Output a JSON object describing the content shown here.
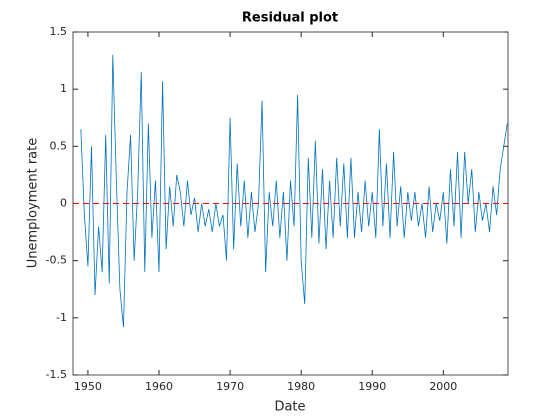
{
  "chart_data": {
    "type": "line",
    "title": "Residual plot",
    "x_label": "Date",
    "y_label": "Unemployment rate",
    "x": [
      1949,
      1949.5,
      1950,
      1950.5,
      1951,
      1951.5,
      1952,
      1952.5,
      1953,
      1953.5,
      1954,
      1954.5,
      1955,
      1955.5,
      1956,
      1956.5,
      1957,
      1957.5,
      1958,
      1958.5,
      1959,
      1959.5,
      1960,
      1960.5,
      1961,
      1961.5,
      1962,
      1962.5,
      1963,
      1963.5,
      1964,
      1964.5,
      1965,
      1965.5,
      1966,
      1966.5,
      1967,
      1967.5,
      1968,
      1968.5,
      1969,
      1969.5,
      1970,
      1970.5,
      1971,
      1971.5,
      1972,
      1972.5,
      1973,
      1973.5,
      1974,
      1974.5,
      1975,
      1975.5,
      1976,
      1976.5,
      1977,
      1977.5,
      1978,
      1978.5,
      1979,
      1979.5,
      1980,
      1980.5,
      1981,
      1981.5,
      1982,
      1982.5,
      1983,
      1983.5,
      1984,
      1984.5,
      1985,
      1985.5,
      1986,
      1986.5,
      1987,
      1987.5,
      1988,
      1988.5,
      1989,
      1989.5,
      1990,
      1990.5,
      1991,
      1991.5,
      1992,
      1992.5,
      1993,
      1993.5,
      1994,
      1994.5,
      1995,
      1995.5,
      1996,
      1996.5,
      1997,
      1997.5,
      1998,
      1998.5,
      1999,
      1999.5,
      2000,
      2000.5,
      2001,
      2001.5,
      2002,
      2002.5,
      2003,
      2003.5,
      2004,
      2004.5,
      2005,
      2005.5,
      2006,
      2006.5,
      2007,
      2007.5,
      2008,
      2008.5,
      2009
    ],
    "series": [
      {
        "name": "Residual",
        "color": "#0072bd",
        "values": [
          0.65,
          -0.1,
          -0.55,
          0.5,
          -0.8,
          -0.2,
          -0.6,
          0.6,
          -0.7,
          1.3,
          0.2,
          -0.75,
          -1.08,
          0.1,
          0.6,
          -0.5,
          0.1,
          1.15,
          -0.6,
          0.7,
          -0.3,
          0.2,
          -0.6,
          1.07,
          -0.4,
          0.15,
          -0.2,
          0.25,
          0.1,
          -0.2,
          0.2,
          -0.1,
          0.05,
          -0.25,
          0.0,
          -0.2,
          -0.05,
          -0.25,
          0.0,
          -0.2,
          -0.1,
          -0.5,
          0.75,
          -0.4,
          0.35,
          -0.2,
          0.2,
          -0.3,
          0.1,
          -0.25,
          0.0,
          0.9,
          -0.6,
          0.1,
          -0.2,
          0.2,
          -0.3,
          0.1,
          -0.5,
          0.2,
          -0.2,
          0.95,
          -0.5,
          -0.88,
          0.4,
          -0.3,
          0.55,
          -0.35,
          0.3,
          -0.4,
          0.2,
          -0.3,
          0.4,
          -0.2,
          0.35,
          -0.3,
          0.4,
          -0.3,
          0.1,
          -0.25,
          0.2,
          -0.2,
          0.1,
          -0.3,
          0.65,
          -0.2,
          0.35,
          -0.3,
          0.45,
          -0.2,
          0.15,
          -0.3,
          0.1,
          -0.15,
          0.1,
          -0.2,
          0.0,
          -0.3,
          0.15,
          -0.25,
          0.0,
          -0.15,
          0.1,
          -0.35,
          0.3,
          -0.2,
          0.45,
          -0.3,
          0.45,
          0.0,
          0.3,
          -0.25,
          0.1,
          -0.15,
          0.0,
          -0.25,
          0.15,
          -0.1,
          0.3,
          0.5,
          0.7
        ]
      }
    ],
    "reference_line": {
      "value": 0,
      "color": "#ff0000",
      "style": "dashed"
    },
    "xlim": [
      1947.9,
      2009.1
    ],
    "xticks": [
      1950,
      1960,
      1970,
      1980,
      1990,
      2000
    ],
    "ylim": [
      -1.5,
      1.5
    ],
    "yticks": [
      -1.5,
      -1,
      -0.5,
      0,
      0.5,
      1,
      1.5
    ],
    "grid": false
  }
}
